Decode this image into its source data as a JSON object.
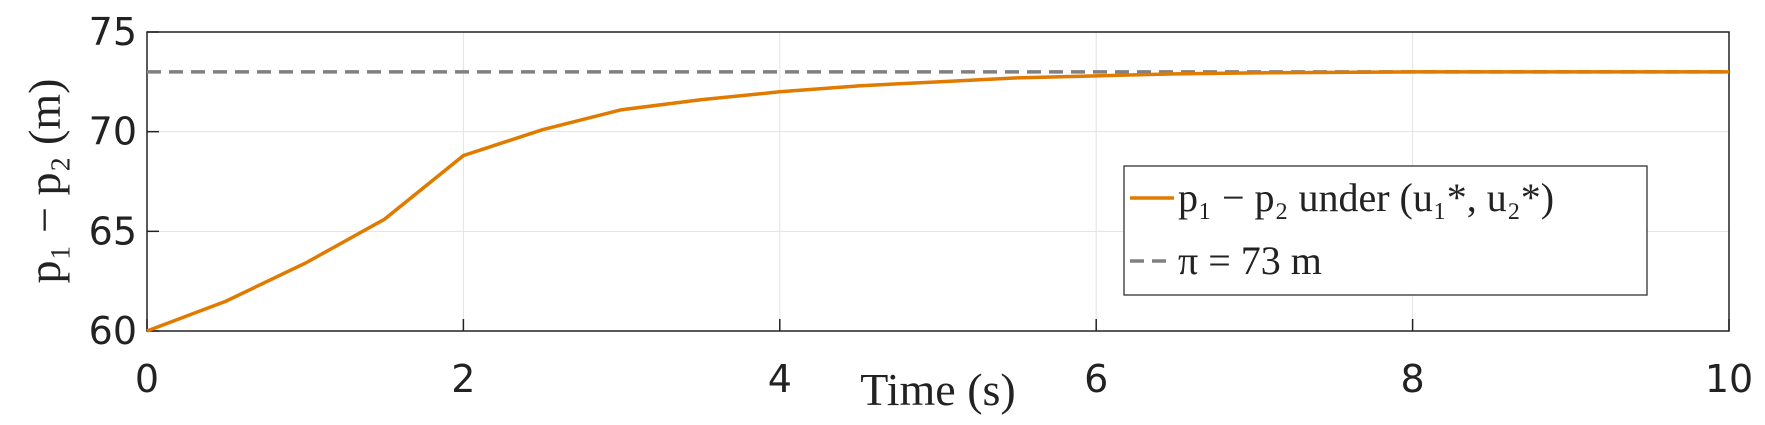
{
  "chart_data": {
    "type": "line",
    "x_label": "Time (s)",
    "y_label": "p₁ − p₂ (m)",
    "xlim": [
      0,
      10
    ],
    "xticks": [
      0,
      2,
      4,
      6,
      8,
      10
    ],
    "ylim": [
      60,
      75
    ],
    "yticks": [
      60,
      65,
      70,
      75
    ],
    "grid": true,
    "legend": "right",
    "series": [
      {
        "name": "p₁ − p₂ under (u₁*, u₂*)",
        "color": "#e07b00",
        "dash": false,
        "x": [
          0,
          0.5,
          1,
          1.5,
          2,
          2.5,
          3,
          3.5,
          4,
          4.5,
          5,
          5.5,
          6,
          6.5,
          7,
          8,
          9,
          10
        ],
        "values": [
          60,
          61.5,
          63.4,
          65.6,
          68.8,
          70.1,
          71.1,
          71.6,
          72.0,
          72.3,
          72.5,
          72.7,
          72.8,
          72.9,
          72.95,
          73,
          73,
          73
        ]
      },
      {
        "name": "π = 73 m",
        "color": "#808080",
        "dash": true,
        "x": [
          0,
          10
        ],
        "values": [
          73,
          73
        ]
      }
    ]
  }
}
